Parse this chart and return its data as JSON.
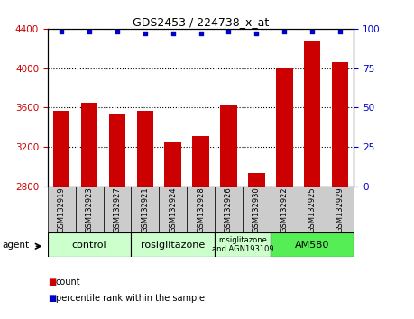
{
  "title": "GDS2453 / 224738_x_at",
  "samples": [
    "GSM132919",
    "GSM132923",
    "GSM132927",
    "GSM132921",
    "GSM132924",
    "GSM132928",
    "GSM132926",
    "GSM132930",
    "GSM132922",
    "GSM132925",
    "GSM132929"
  ],
  "counts": [
    3570,
    3650,
    3530,
    3570,
    3250,
    3310,
    3620,
    2940,
    4010,
    4280,
    4060
  ],
  "percentiles": [
    98,
    98,
    98,
    97,
    97,
    97,
    98,
    97,
    98,
    98,
    98
  ],
  "ylim": [
    2800,
    4400
  ],
  "yticks_left": [
    2800,
    3200,
    3600,
    4000,
    4400
  ],
  "yticks_right": [
    0,
    25,
    50,
    75,
    100
  ],
  "bar_color": "#cc0000",
  "dot_color": "#0000cc",
  "bar_width": 0.6,
  "groups": [
    {
      "label": "control",
      "start": 0,
      "end": 2,
      "color": "#ccffcc"
    },
    {
      "label": "rosiglitazone",
      "start": 3,
      "end": 5,
      "color": "#ccffcc"
    },
    {
      "label": "rosiglitazone\nand AGN193109",
      "start": 6,
      "end": 7,
      "color": "#ccffcc"
    },
    {
      "label": "AM580",
      "start": 8,
      "end": 10,
      "color": "#55ee55"
    }
  ],
  "tick_bg_color": "#cccccc",
  "legend_count_color": "#cc0000",
  "legend_pct_color": "#0000cc",
  "plot_bg_color": "#ffffff",
  "tick_label_color_left": "#cc0000",
  "tick_label_color_right": "#0000cc",
  "grid_color": "#000000",
  "agent_label": "agent"
}
